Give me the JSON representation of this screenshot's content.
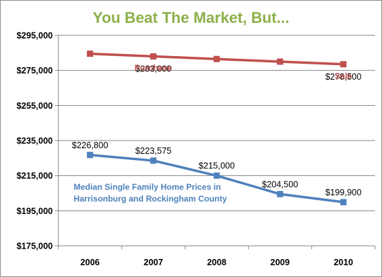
{
  "colors": {
    "title": "#8db04a",
    "upper_series": "#c0504d",
    "lower_series": "#4f81bd",
    "gridline": "#868686",
    "axis": "#868686"
  },
  "chart_data": {
    "type": "line",
    "title": "You Beat The Market, But...",
    "xlabel": "",
    "ylabel": "",
    "categories": [
      "2006",
      "2007",
      "2008",
      "2009",
      "2010"
    ],
    "ylim": [
      175000,
      295000
    ],
    "yticks": [
      175000,
      195000,
      215000,
      235000,
      255000,
      275000,
      295000
    ],
    "ytick_labels": [
      "$175,000",
      "$195,000",
      "$215,000",
      "$235,000",
      "$255,000",
      "$275,000",
      "$295,000"
    ],
    "grid": true,
    "legend": "none",
    "series": [
      {
        "values": [
          284500,
          283000,
          281500,
          280000,
          278500
        ],
        "color": "#c0504d",
        "marker": "square",
        "data_labels": [
          "",
          "$283,000",
          "",
          "",
          "$278,500"
        ]
      },
      {
        "values": [
          226800,
          223575,
          215000,
          204500,
          199900
        ],
        "color": "#4f81bd",
        "marker": "square",
        "data_labels": [
          "$226,800",
          "$223,575",
          "$215,000",
          "$204,500",
          "$199,900"
        ]
      }
    ],
    "annotations": [
      {
        "text": "Purchase",
        "color": "#c0504d",
        "category": "2007",
        "value": 276500
      },
      {
        "text": "Sale",
        "color": "#c0504d",
        "category": "2010",
        "value": 271800
      },
      {
        "text": "Median Single Family Home Prices in",
        "color": "#4f81bd",
        "category": "2006",
        "value": 208500
      },
      {
        "text": "Harrisonburg and Rockingham County",
        "color": "#4f81bd",
        "category": "2006",
        "value": 201800
      }
    ]
  }
}
